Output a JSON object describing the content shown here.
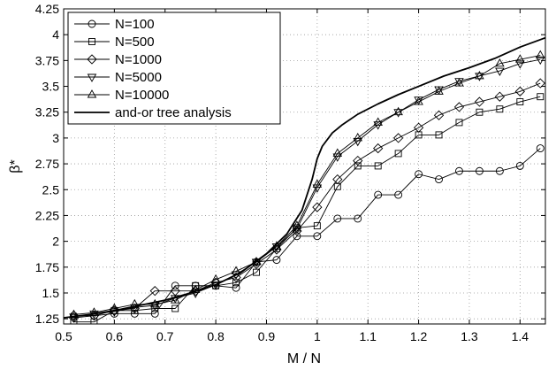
{
  "chart_data": {
    "type": "line",
    "xlabel": "M / N",
    "ylabel": "β*",
    "xlim": [
      0.5,
      1.45
    ],
    "ylim": [
      1.2,
      4.25
    ],
    "xticks": [
      "0.5",
      "0.6",
      "0.7",
      "0.8",
      "0.9",
      "1",
      "1.1",
      "1.2",
      "1.3",
      "1.4"
    ],
    "yticks": [
      "1.25",
      "1.5",
      "1.75",
      "2",
      "2.25",
      "2.5",
      "2.75",
      "3",
      "3.25",
      "3.5",
      "3.75",
      "4",
      "4.25"
    ],
    "grid": "dotted",
    "legend_position": "top-left",
    "series": [
      {
        "name": "N=100",
        "marker": "circle",
        "x": [
          0.52,
          0.56,
          0.6,
          0.64,
          0.68,
          0.72,
          0.76,
          0.8,
          0.84,
          0.88,
          0.92,
          0.96,
          1.0,
          1.04,
          1.08,
          1.12,
          1.16,
          1.2,
          1.24,
          1.28,
          1.32,
          1.36,
          1.4,
          1.44
        ],
        "y": [
          1.28,
          1.28,
          1.3,
          1.3,
          1.3,
          1.57,
          1.57,
          1.57,
          1.55,
          1.8,
          1.82,
          2.05,
          2.05,
          2.22,
          2.22,
          2.45,
          2.45,
          2.65,
          2.6,
          2.68,
          2.68,
          2.68,
          2.73,
          2.9
        ]
      },
      {
        "name": "N=500",
        "marker": "square",
        "x": [
          0.52,
          0.56,
          0.6,
          0.64,
          0.68,
          0.72,
          0.76,
          0.8,
          0.84,
          0.88,
          0.92,
          0.96,
          1.0,
          1.04,
          1.08,
          1.12,
          1.16,
          1.2,
          1.24,
          1.28,
          1.32,
          1.36,
          1.4,
          1.44
        ],
        "y": [
          1.22,
          1.22,
          1.33,
          1.33,
          1.35,
          1.35,
          1.57,
          1.57,
          1.6,
          1.7,
          1.93,
          2.13,
          2.15,
          2.53,
          2.73,
          2.73,
          2.85,
          3.03,
          3.03,
          3.15,
          3.25,
          3.28,
          3.35,
          3.4
        ]
      },
      {
        "name": "N=1000",
        "marker": "diamond",
        "x": [
          0.52,
          0.56,
          0.6,
          0.64,
          0.68,
          0.72,
          0.76,
          0.8,
          0.84,
          0.88,
          0.92,
          0.96,
          1.0,
          1.04,
          1.08,
          1.12,
          1.16,
          1.2,
          1.24,
          1.28,
          1.32,
          1.36,
          1.4,
          1.44
        ],
        "y": [
          1.26,
          1.28,
          1.33,
          1.35,
          1.52,
          1.52,
          1.52,
          1.6,
          1.65,
          1.78,
          1.92,
          2.1,
          2.33,
          2.6,
          2.78,
          2.9,
          3.0,
          3.1,
          3.22,
          3.3,
          3.35,
          3.4,
          3.45,
          3.53
        ]
      },
      {
        "name": "N=5000",
        "marker": "triangle-down",
        "x": [
          0.52,
          0.56,
          0.6,
          0.64,
          0.68,
          0.72,
          0.76,
          0.8,
          0.84,
          0.88,
          0.92,
          0.96,
          1.0,
          1.04,
          1.08,
          1.12,
          1.16,
          1.2,
          1.24,
          1.28,
          1.32,
          1.36,
          1.4,
          1.44
        ],
        "y": [
          1.27,
          1.3,
          1.32,
          1.36,
          1.38,
          1.45,
          1.5,
          1.58,
          1.68,
          1.8,
          1.95,
          2.12,
          2.52,
          2.82,
          2.97,
          3.13,
          3.25,
          3.37,
          3.47,
          3.55,
          3.6,
          3.65,
          3.72,
          3.76
        ]
      },
      {
        "name": "N=10000",
        "marker": "triangle-up",
        "x": [
          0.52,
          0.56,
          0.6,
          0.64,
          0.68,
          0.72,
          0.76,
          0.8,
          0.84,
          0.88,
          0.92,
          0.96,
          1.0,
          1.04,
          1.08,
          1.12,
          1.16,
          1.2,
          1.24,
          1.28,
          1.32,
          1.36,
          1.4,
          1.44
        ],
        "y": [
          1.29,
          1.31,
          1.35,
          1.39,
          1.39,
          1.43,
          1.53,
          1.63,
          1.71,
          1.8,
          1.95,
          2.15,
          2.55,
          2.85,
          3.0,
          3.15,
          3.25,
          3.35,
          3.45,
          3.53,
          3.6,
          3.72,
          3.76,
          3.8
        ]
      },
      {
        "name": "and-or tree analysis",
        "marker": "none",
        "x": [
          0.5,
          0.55,
          0.6,
          0.65,
          0.7,
          0.75,
          0.8,
          0.85,
          0.9,
          0.94,
          0.97,
          0.99,
          1.0,
          1.01,
          1.03,
          1.05,
          1.08,
          1.12,
          1.16,
          1.2,
          1.25,
          1.3,
          1.35,
          1.4,
          1.45
        ],
        "y": [
          1.26,
          1.29,
          1.33,
          1.38,
          1.43,
          1.5,
          1.58,
          1.7,
          1.88,
          2.07,
          2.3,
          2.6,
          2.8,
          2.92,
          3.05,
          3.13,
          3.23,
          3.33,
          3.42,
          3.5,
          3.6,
          3.68,
          3.77,
          3.88,
          3.97
        ]
      }
    ]
  }
}
